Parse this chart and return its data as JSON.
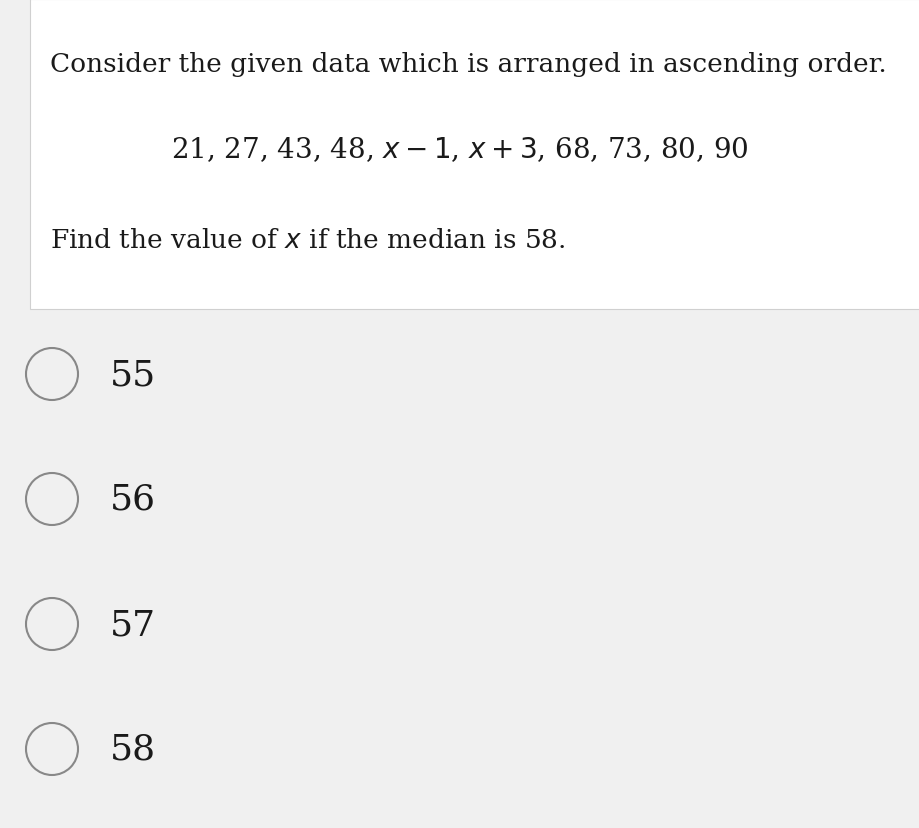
{
  "bg_color": "#f0f0f0",
  "question_box_bg": "#ffffff",
  "question_box_border": "#d0d0d0",
  "options": [
    "55",
    "56",
    "57",
    "58"
  ],
  "font_size_q1": 19,
  "font_size_data": 20,
  "font_size_q3": 19,
  "font_size_options": 26,
  "text_color": "#1a1a1a",
  "circle_color": "#888888",
  "circle_linewidth": 1.5,
  "question_line1": "Consider the given data which is arranged in ascending order.",
  "question_line3": "Find the value of ",
  "question_line3b": " if the median is 58."
}
